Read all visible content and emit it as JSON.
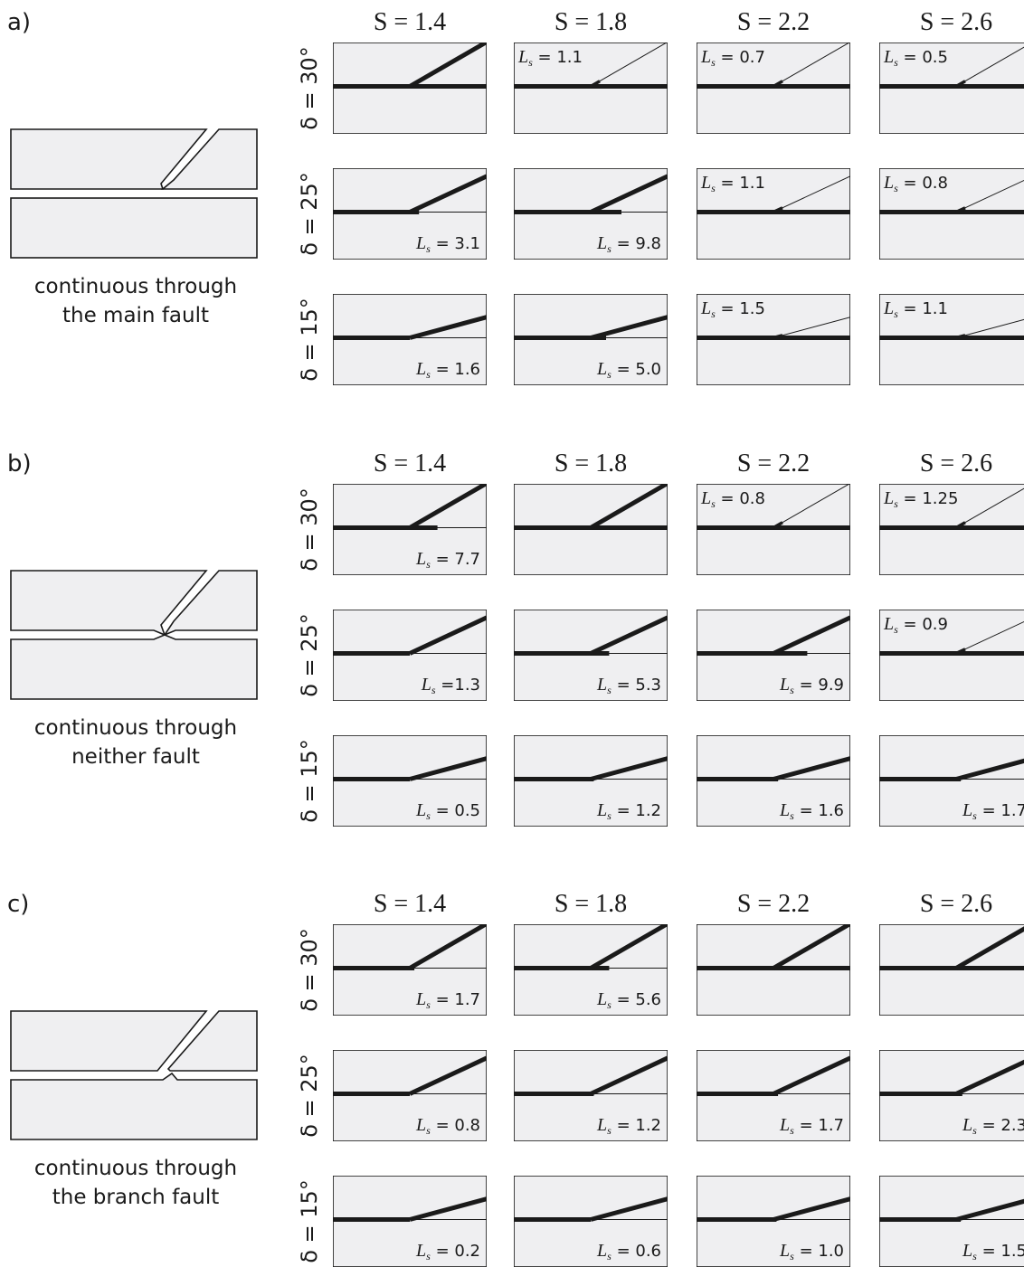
{
  "colors": {
    "panel_fill": "#efeff1",
    "ink": "#1a1a1a"
  },
  "sections": [
    {
      "label": "a)",
      "caption": [
        "continuous through",
        "the main fault"
      ],
      "schematic": "main",
      "columns": [
        "S = 1.4",
        "S = 1.8",
        "S = 2.2",
        "S = 2.6"
      ],
      "rows": [
        {
          "label": "δ = 30°",
          "angle_deg": 30,
          "cells": [
            {
              "mode": "through",
              "ls_value": "",
              "ls_text": "",
              "ls_position": "none",
              "ext": 0
            },
            {
              "mode": "arrest",
              "ls_value": "1.1",
              "ls_text": " = 1.1",
              "ls_position": "top",
              "ext": 0
            },
            {
              "mode": "arrest",
              "ls_value": "0.7",
              "ls_text": " = 0.7",
              "ls_position": "top",
              "ext": 0
            },
            {
              "mode": "arrest",
              "ls_value": "0.5",
              "ls_text": " = 0.5",
              "ls_position": "top",
              "ext": 0
            }
          ]
        },
        {
          "label": "δ = 25°",
          "angle_deg": 25,
          "cells": [
            {
              "mode": "branch",
              "ls_value": "3.1",
              "ls_text": " = 3.1",
              "ls_position": "bottom",
              "ext": 0.06
            },
            {
              "mode": "branch",
              "ls_value": "9.8",
              "ls_text": " = 9.8",
              "ls_position": "bottom",
              "ext": 0.2
            },
            {
              "mode": "arrest",
              "ls_value": "1.1",
              "ls_text": " = 1.1",
              "ls_position": "top",
              "ext": 0
            },
            {
              "mode": "arrest",
              "ls_value": "0.8",
              "ls_text": " = 0.8",
              "ls_position": "top",
              "ext": 0
            }
          ]
        },
        {
          "label": "δ = 15°",
          "angle_deg": 15,
          "cells": [
            {
              "mode": "branch",
              "ls_value": "1.6",
              "ls_text": " = 1.6",
              "ls_position": "bottom",
              "ext": 0
            },
            {
              "mode": "branch",
              "ls_value": "5.0",
              "ls_text": " = 5.0",
              "ls_position": "bottom",
              "ext": 0.1
            },
            {
              "mode": "arrest",
              "ls_value": "1.5",
              "ls_text": " = 1.5",
              "ls_position": "top",
              "ext": 0
            },
            {
              "mode": "arrest",
              "ls_value": "1.1",
              "ls_text": " = 1.1",
              "ls_position": "top",
              "ext": 0
            }
          ]
        }
      ]
    },
    {
      "label": "b)",
      "caption": [
        "continuous through",
        "neither fault"
      ],
      "schematic": "neither",
      "columns": [
        "S = 1.4",
        "S = 1.8",
        "S = 2.2",
        "S = 2.6"
      ],
      "rows": [
        {
          "label": "δ = 30°",
          "angle_deg": 30,
          "cells": [
            {
              "mode": "branch",
              "ls_value": "7.7",
              "ls_text": " = 7.7",
              "ls_position": "bottom",
              "ext": 0.18
            },
            {
              "mode": "through",
              "ls_value": "",
              "ls_text": "",
              "ls_position": "none",
              "ext": 0
            },
            {
              "mode": "arrest",
              "ls_value": "0.8",
              "ls_text": " = 0.8",
              "ls_position": "top",
              "ext": 0
            },
            {
              "mode": "arrest",
              "ls_value": "1.25",
              "ls_text": " = 1.25",
              "ls_position": "top",
              "ext": 0
            }
          ]
        },
        {
          "label": "δ = 25°",
          "angle_deg": 25,
          "cells": [
            {
              "mode": "branch",
              "ls_value": "1.3",
              "ls_text": " =1.3",
              "ls_position": "bottom",
              "ext": 0
            },
            {
              "mode": "branch",
              "ls_value": "5.3",
              "ls_text": " = 5.3",
              "ls_position": "bottom",
              "ext": 0.12
            },
            {
              "mode": "branch",
              "ls_value": "9.9",
              "ls_text": " = 9.9",
              "ls_position": "bottom",
              "ext": 0.22
            },
            {
              "mode": "arrest",
              "ls_value": "0.9",
              "ls_text": " = 0.9",
              "ls_position": "top",
              "ext": 0
            }
          ]
        },
        {
          "label": "δ = 15°",
          "angle_deg": 15,
          "cells": [
            {
              "mode": "branch",
              "ls_value": "0.5",
              "ls_text": " = 0.5",
              "ls_position": "bottom",
              "ext": 0
            },
            {
              "mode": "branch",
              "ls_value": "1.2",
              "ls_text": " = 1.2",
              "ls_position": "bottom",
              "ext": 0.02
            },
            {
              "mode": "branch",
              "ls_value": "1.6",
              "ls_text": " = 1.6",
              "ls_position": "bottom",
              "ext": 0.03
            },
            {
              "mode": "branch",
              "ls_value": "1.7",
              "ls_text": " = 1.7",
              "ls_position": "bottom",
              "ext": 0.03
            }
          ]
        }
      ]
    },
    {
      "label": "c)",
      "caption": [
        "continuous through",
        "the branch fault"
      ],
      "schematic": "branch",
      "columns": [
        "S = 1.4",
        "S = 1.8",
        "S = 2.2",
        "S = 2.6"
      ],
      "rows": [
        {
          "label": "δ = 30°",
          "angle_deg": 30,
          "cells": [
            {
              "mode": "branch",
              "ls_value": "1.7",
              "ls_text": " = 1.7",
              "ls_position": "bottom",
              "ext": 0.03
            },
            {
              "mode": "branch",
              "ls_value": "5.6",
              "ls_text": " = 5.6",
              "ls_position": "bottom",
              "ext": 0.12
            },
            {
              "mode": "through",
              "ls_value": "",
              "ls_text": "",
              "ls_position": "none",
              "ext": 0
            },
            {
              "mode": "through",
              "ls_value": "",
              "ls_text": "",
              "ls_position": "none",
              "ext": 0
            }
          ]
        },
        {
          "label": "δ = 25°",
          "angle_deg": 25,
          "cells": [
            {
              "mode": "branch",
              "ls_value": "0.8",
              "ls_text": " = 0.8",
              "ls_position": "bottom",
              "ext": 0
            },
            {
              "mode": "branch",
              "ls_value": "1.2",
              "ls_text": " = 1.2",
              "ls_position": "bottom",
              "ext": 0.02
            },
            {
              "mode": "branch",
              "ls_value": "1.7",
              "ls_text": " = 1.7",
              "ls_position": "bottom",
              "ext": 0.03
            },
            {
              "mode": "branch",
              "ls_value": "2.3",
              "ls_text": " = 2.3",
              "ls_position": "bottom",
              "ext": 0.04
            }
          ]
        },
        {
          "label": "δ = 15°",
          "angle_deg": 15,
          "cells": [
            {
              "mode": "branch",
              "ls_value": "0.2",
              "ls_text": " = 0.2",
              "ls_position": "bottom",
              "ext": 0
            },
            {
              "mode": "branch",
              "ls_value": "0.6",
              "ls_text": " = 0.6",
              "ls_position": "bottom",
              "ext": 0
            },
            {
              "mode": "branch",
              "ls_value": "1.0",
              "ls_text": " = 1.0",
              "ls_position": "bottom",
              "ext": 0.02
            },
            {
              "mode": "branch",
              "ls_value": "1.5",
              "ls_text": " = 1.5",
              "ls_position": "bottom",
              "ext": 0.03
            }
          ]
        }
      ]
    }
  ]
}
